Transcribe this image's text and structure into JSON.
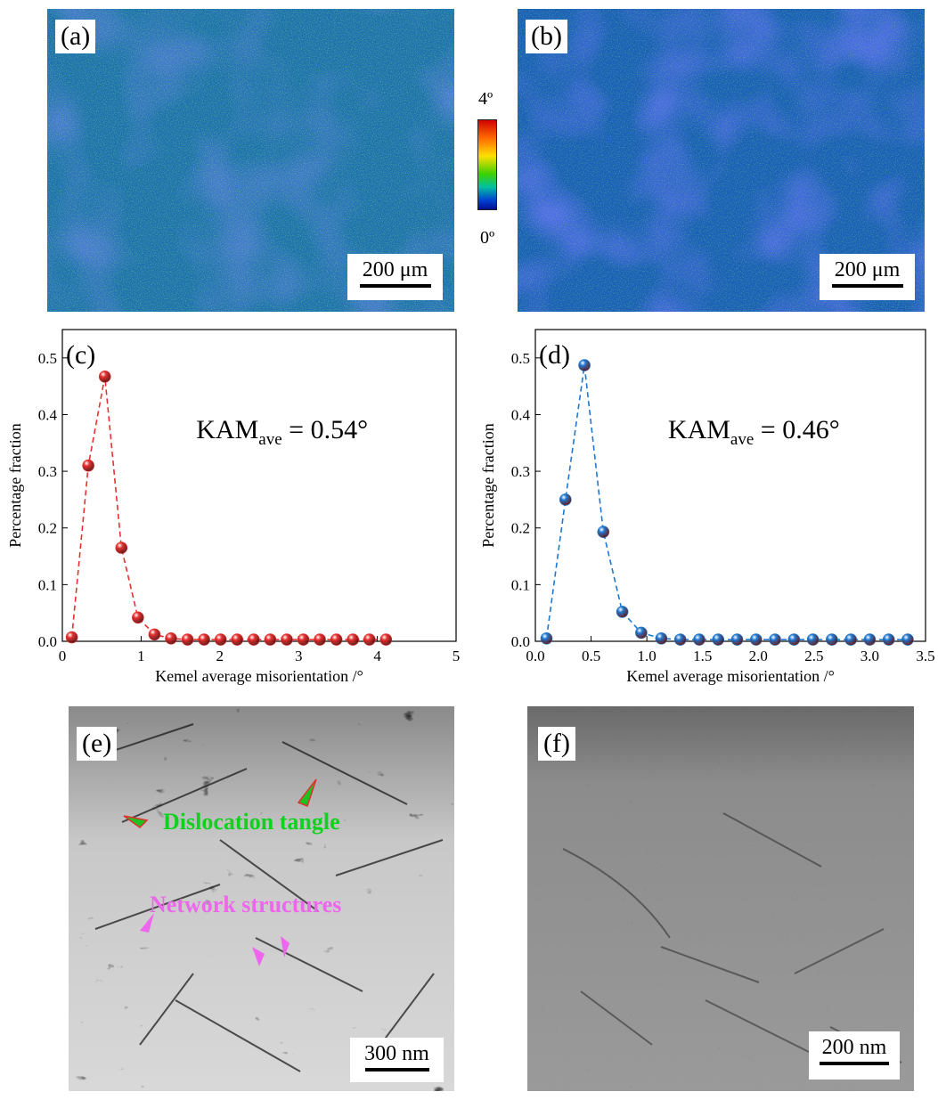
{
  "panels": {
    "a": {
      "label": "(a)",
      "scale_bar": "200 μm"
    },
    "b": {
      "label": "(b)",
      "scale_bar": "200 μm"
    },
    "e": {
      "label": "(e)",
      "scale_bar": "300 nm",
      "annotations": {
        "tangle": "Dislocation tangle",
        "network": "Network structures"
      }
    },
    "f": {
      "label": "(f)",
      "scale_bar": "200 nm"
    }
  },
  "colorbar": {
    "max_label": "4º",
    "min_label": "0º",
    "colors": [
      "#e60000",
      "#ff8c00",
      "#ffee00",
      "#00c800",
      "#0030c8"
    ]
  },
  "chart_data": [
    {
      "panel": "(c)",
      "type": "line",
      "annotation": {
        "main": "KAM",
        "sub": "ave",
        "rest": " = 0.54°"
      },
      "xlabel": "Kemel average misorientation /°",
      "ylabel": "Percentage fraction",
      "xlim": [
        0,
        5
      ],
      "ylim": [
        0,
        0.55
      ],
      "xticks": [
        0,
        1,
        2,
        3,
        4,
        5
      ],
      "yticks": [
        0.0,
        0.1,
        0.2,
        0.3,
        0.4,
        0.5
      ],
      "xtick_labels": [
        "0",
        "1",
        "2",
        "3",
        "4",
        "5"
      ],
      "ytick_labels": [
        "0.0",
        "0.1",
        "0.2",
        "0.3",
        "0.4",
        "0.5"
      ],
      "color": "#e83030",
      "x": [
        0.12,
        0.33,
        0.54,
        0.75,
        0.96,
        1.17,
        1.38,
        1.59,
        1.8,
        2.01,
        2.22,
        2.43,
        2.64,
        2.85,
        3.06,
        3.27,
        3.48,
        3.69,
        3.9,
        4.11
      ],
      "y": [
        0.007,
        0.31,
        0.467,
        0.165,
        0.042,
        0.012,
        0.005,
        0.003,
        0.003,
        0.003,
        0.003,
        0.003,
        0.003,
        0.003,
        0.003,
        0.003,
        0.003,
        0.003,
        0.003,
        0.003
      ]
    },
    {
      "panel": "(d)",
      "type": "line",
      "annotation": {
        "main": "KAM",
        "sub": "ave",
        "rest": " = 0.46°"
      },
      "xlabel": "Kemel average misorientation /°",
      "ylabel": "Percentage fraction",
      "xlim": [
        0,
        3.5
      ],
      "ylim": [
        0,
        0.55
      ],
      "xticks": [
        0.0,
        0.5,
        1.0,
        1.5,
        2.0,
        2.5,
        3.0,
        3.5
      ],
      "yticks": [
        0.0,
        0.1,
        0.2,
        0.3,
        0.4,
        0.5
      ],
      "xtick_labels": [
        "0.0",
        "0.5",
        "1.0",
        "1.5",
        "2.0",
        "2.5",
        "3.0",
        "3.5"
      ],
      "ytick_labels": [
        "0.0",
        "0.1",
        "0.2",
        "0.3",
        "0.4",
        "0.5"
      ],
      "color": "#1e78d0",
      "x": [
        0.1,
        0.27,
        0.44,
        0.61,
        0.78,
        0.95,
        1.13,
        1.3,
        1.47,
        1.64,
        1.81,
        1.98,
        2.15,
        2.32,
        2.49,
        2.66,
        2.83,
        3.0,
        3.17,
        3.34
      ],
      "y": [
        0.005,
        0.25,
        0.487,
        0.193,
        0.052,
        0.015,
        0.005,
        0.003,
        0.003,
        0.003,
        0.003,
        0.003,
        0.003,
        0.003,
        0.003,
        0.003,
        0.003,
        0.003,
        0.003,
        0.003
      ]
    }
  ]
}
